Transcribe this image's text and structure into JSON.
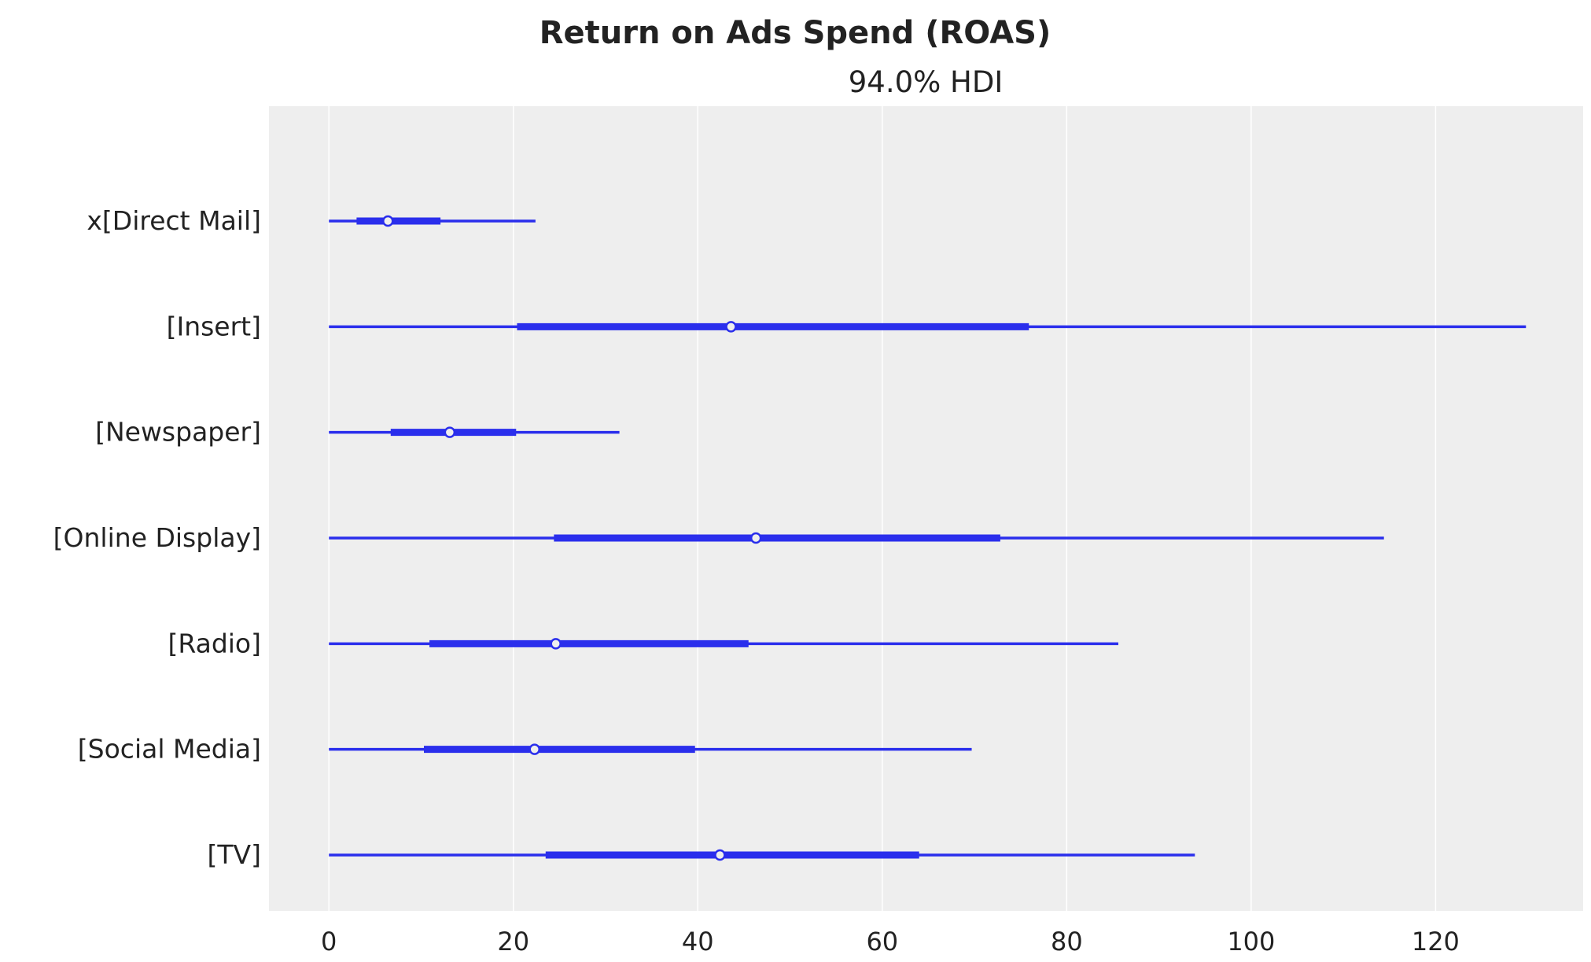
{
  "chart_data": {
    "type": "forest",
    "title": "Return on Ads Spend (ROAS)",
    "subtitle": "94.0% HDI",
    "xlim": [
      -6.5,
      136
    ],
    "xticks": [
      0,
      20,
      40,
      60,
      80,
      100,
      120
    ],
    "grid": "vertical",
    "colors": {
      "line": "#2a2eec",
      "background": "#eeeeee",
      "grid": "#ffffff",
      "text": "#222222"
    },
    "categories": [
      "x[Direct Mail]",
      "[Insert]",
      "[Newspaper]",
      "[Online Display]",
      "[Radio]",
      "[Social Media]",
      "[TV]"
    ],
    "hdi_94_low": [
      0,
      0,
      0,
      0,
      0,
      0,
      0
    ],
    "hdi_94_high": [
      22.4,
      129.8,
      31.5,
      114.4,
      85.6,
      69.7,
      93.9
    ],
    "iqr_low": [
      3.0,
      20.4,
      6.7,
      24.4,
      10.9,
      10.3,
      23.5
    ],
    "iqr_high": [
      12.1,
      75.9,
      20.3,
      72.8,
      45.5,
      39.7,
      64.0
    ],
    "median": [
      6.4,
      43.6,
      13.1,
      46.3,
      24.6,
      22.3,
      42.4
    ]
  }
}
